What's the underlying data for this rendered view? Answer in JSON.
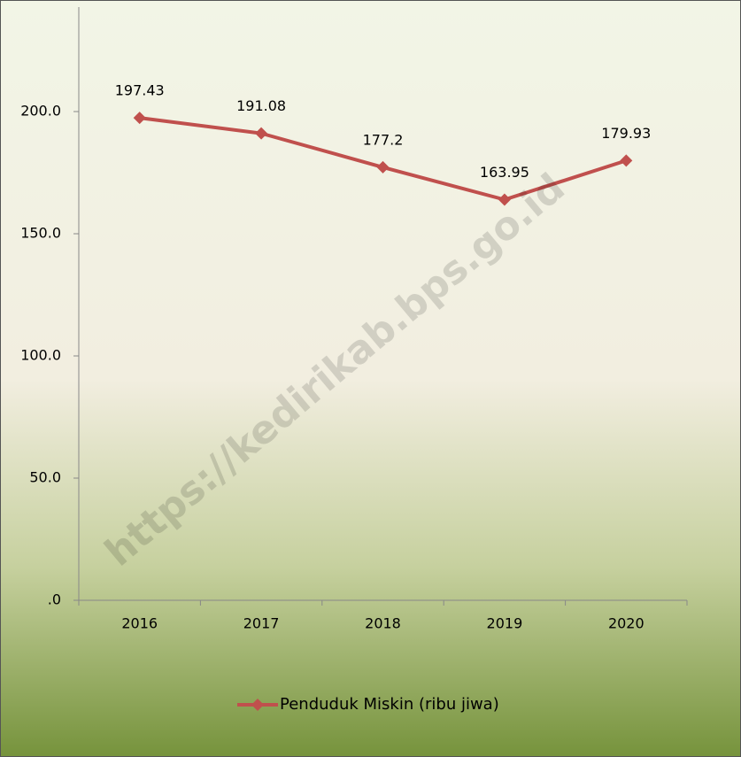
{
  "chart_data": {
    "type": "line",
    "categories": [
      "2016",
      "2017",
      "2018",
      "2019",
      "2020"
    ],
    "series": [
      {
        "name": "Penduduk Miskin (ribu jiwa)",
        "color": "#c0504d",
        "values": [
          197.43,
          191.08,
          177.2,
          163.95,
          179.93
        ]
      }
    ],
    "ylim": [
      0,
      240
    ],
    "yticks": [
      {
        "value": 0,
        "label": ".0"
      },
      {
        "value": 50,
        "label": "50.0"
      },
      {
        "value": 100,
        "label": "100.0"
      },
      {
        "value": 150,
        "label": "150.0"
      },
      {
        "value": 200,
        "label": "200.0"
      }
    ],
    "legend": "bottom",
    "watermark": "https://kedirikab.bps.go.id"
  }
}
